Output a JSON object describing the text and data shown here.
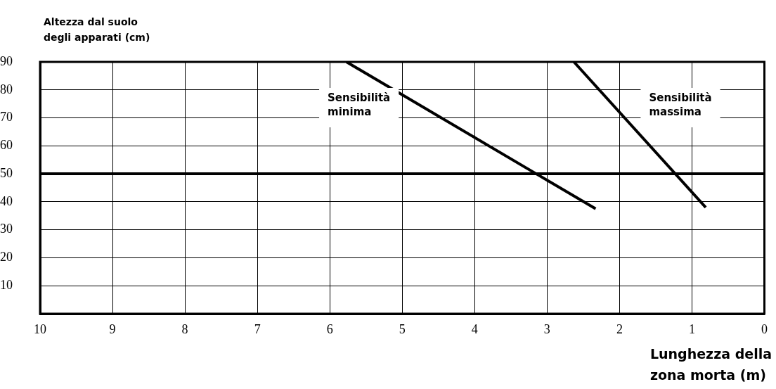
{
  "chart_data": {
    "type": "line",
    "ylabel": "Altezza dal suolo\ndegli apparati (cm)",
    "xlabel": "Lunghezza della\nzona morta (m)",
    "xlim": [
      10,
      0
    ],
    "xticks": [
      10,
      9,
      8,
      7,
      6,
      5,
      4,
      3,
      2,
      1,
      0
    ],
    "ylim": [
      0,
      90
    ],
    "yticks": [
      10,
      20,
      30,
      40,
      50,
      60,
      70,
      80,
      90
    ],
    "grid": true,
    "marker": "none",
    "line_style": "solid",
    "series": [
      {
        "name": "Sensibilità minima",
        "color": "#000000",
        "x": [
          5.77,
          2.33
        ],
        "values": [
          90,
          37.5
        ]
      },
      {
        "name": "Sensibilità massima",
        "color": "#000000",
        "x": [
          2.63,
          0.81
        ],
        "values": [
          90,
          38
        ]
      }
    ],
    "ref_lines": [
      {
        "axis": "y",
        "value": 50,
        "color": "#000000"
      }
    ]
  }
}
